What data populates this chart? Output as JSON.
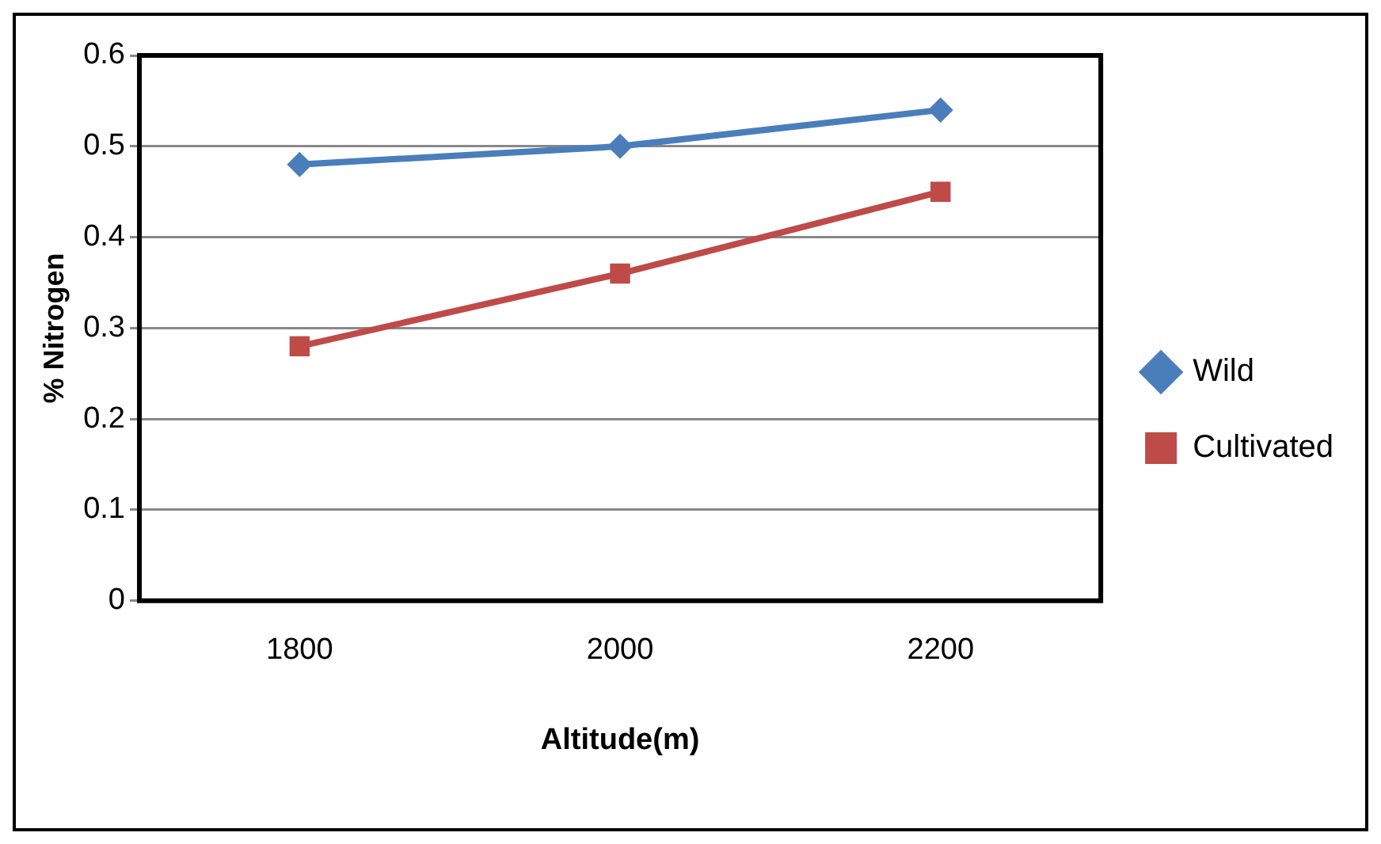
{
  "chart_data": {
    "type": "line",
    "xlabel": "Altitude(m)",
    "ylabel": "% Nitrogen",
    "categories": [
      "1800",
      "2000",
      "2200"
    ],
    "series": [
      {
        "name": "Wild",
        "color": "#4a7ebb",
        "values": [
          0.48,
          0.5,
          0.54
        ],
        "marker": "diamond"
      },
      {
        "name": "Cultivated",
        "color": "#be4b48",
        "values": [
          0.28,
          0.36,
          0.45
        ],
        "marker": "square"
      }
    ],
    "ylim": [
      0,
      0.6
    ],
    "yticks": [
      0,
      0.1,
      0.2,
      0.3,
      0.4,
      0.5,
      0.6
    ],
    "grid": "y",
    "legend": "right",
    "line_style": "solid"
  }
}
